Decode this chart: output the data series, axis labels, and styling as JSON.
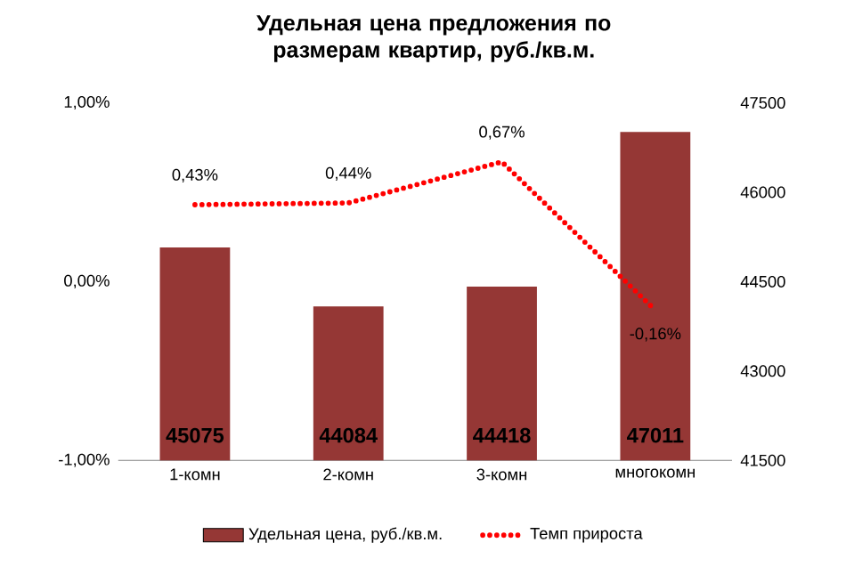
{
  "chart_data": {
    "type": "bar",
    "title": "Удельная цена предложения по размерам квартир, руб./кв.м.",
    "categories": [
      "1-комн",
      "2-комн",
      "3-комн",
      "многокомн"
    ],
    "series": [
      {
        "name": "Удельная цена, руб./кв.м.",
        "axis": "y2",
        "color": "#953735",
        "values": [
          45075,
          44084,
          44418,
          47011
        ],
        "value_labels": [
          "45075",
          "44084",
          "44418",
          "47011"
        ]
      },
      {
        "name": "Темп прироста",
        "type": "line",
        "axis": "y",
        "color": "#ff0000",
        "line_style": "dotted",
        "values": [
          0.43,
          0.44,
          0.67,
          -0.16
        ],
        "value_labels": [
          "0,43%",
          "0,44%",
          "0,67%",
          "-0,16%"
        ]
      }
    ],
    "ylim": [
      -1,
      1
    ],
    "yticks": [
      {
        "value": -1,
        "label": "-1,00%"
      },
      {
        "value": 0,
        "label": "0,00%"
      },
      {
        "value": 1,
        "label": "1,00%"
      }
    ],
    "y2lim": [
      41500,
      47500
    ],
    "y2ticks": [
      41500,
      43000,
      44500,
      46000,
      47500
    ],
    "legend": "bottom"
  }
}
